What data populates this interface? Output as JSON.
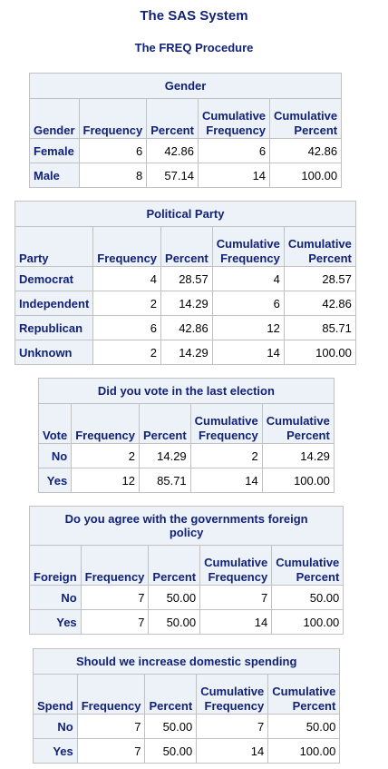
{
  "titles": {
    "system": "The SAS System",
    "procedure": "The FREQ Procedure"
  },
  "columns": {
    "frequency": "Frequency",
    "percent": "Percent",
    "cum_freq_1": "Cumulative",
    "cum_freq_2": "Frequency",
    "cum_pct_1": "Cumulative",
    "cum_pct_2": "Percent"
  },
  "tables": [
    {
      "caption": "Gender",
      "row_header": "Gender",
      "rows": [
        {
          "label": "Female",
          "freq": "6",
          "pct": "42.86",
          "cum_freq": "6",
          "cum_pct": "42.86"
        },
        {
          "label": "Male",
          "freq": "8",
          "pct": "57.14",
          "cum_freq": "14",
          "cum_pct": "100.00"
        }
      ]
    },
    {
      "caption": "Political Party",
      "row_header": "Party",
      "rows": [
        {
          "label": "Democrat",
          "freq": "4",
          "pct": "28.57",
          "cum_freq": "4",
          "cum_pct": "28.57"
        },
        {
          "label": "Independent",
          "freq": "2",
          "pct": "14.29",
          "cum_freq": "6",
          "cum_pct": "42.86"
        },
        {
          "label": "Republican",
          "freq": "6",
          "pct": "42.86",
          "cum_freq": "12",
          "cum_pct": "85.71"
        },
        {
          "label": "Unknown",
          "freq": "2",
          "pct": "14.29",
          "cum_freq": "14",
          "cum_pct": "100.00"
        }
      ]
    },
    {
      "caption": "Did you vote in the last election",
      "row_header": "Vote",
      "rows": [
        {
          "label": "No",
          "freq": "2",
          "pct": "14.29",
          "cum_freq": "2",
          "cum_pct": "14.29"
        },
        {
          "label": "Yes",
          "freq": "12",
          "pct": "85.71",
          "cum_freq": "14",
          "cum_pct": "100.00"
        }
      ]
    },
    {
      "caption_1": "Do you agree with the governments foreign",
      "caption_2": "policy",
      "row_header": "Foreign",
      "rows": [
        {
          "label": "No",
          "freq": "7",
          "pct": "50.00",
          "cum_freq": "7",
          "cum_pct": "50.00"
        },
        {
          "label": "Yes",
          "freq": "7",
          "pct": "50.00",
          "cum_freq": "14",
          "cum_pct": "100.00"
        }
      ]
    },
    {
      "caption": "Should we increase domestic spending",
      "row_header": "Spend",
      "rows": [
        {
          "label": "No",
          "freq": "7",
          "pct": "50.00",
          "cum_freq": "7",
          "cum_pct": "50.00"
        },
        {
          "label": "Yes",
          "freq": "7",
          "pct": "50.00",
          "cum_freq": "14",
          "cum_pct": "100.00"
        }
      ]
    }
  ]
}
